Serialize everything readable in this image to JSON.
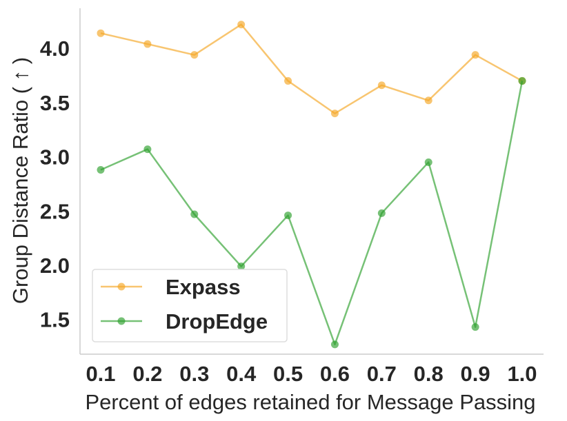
{
  "chart_data": {
    "type": "line",
    "title": "",
    "xlabel": "Percent of edges retained for Message Passing",
    "ylabel": "Group Distance Ratio ( ↑ )",
    "x": [
      0.1,
      0.2,
      0.3,
      0.4,
      0.5,
      0.6,
      0.7,
      0.8,
      0.9,
      1.0
    ],
    "x_tick_labels": [
      "0.1",
      "0.2",
      "0.3",
      "0.4",
      "0.5",
      "0.6",
      "0.7",
      "0.8",
      "0.9",
      "1.0"
    ],
    "y_ticks": [
      1.5,
      2.0,
      2.5,
      3.0,
      3.5,
      4.0
    ],
    "y_tick_labels": [
      "1.5",
      "2.0",
      "2.5",
      "3.0",
      "3.5",
      "4.0"
    ],
    "xlim": [
      0.05,
      1.05
    ],
    "ylim": [
      1.18,
      4.37
    ],
    "grid": false,
    "legend_position": "lower-left",
    "series": [
      {
        "name": "Expass",
        "color": "#f5a623",
        "values": [
          4.14,
          4.04,
          3.94,
          4.22,
          3.7,
          3.4,
          3.66,
          3.52,
          3.94,
          3.7
        ]
      },
      {
        "name": "DropEdge",
        "color": "#2ca02c",
        "values": [
          2.88,
          3.07,
          2.47,
          1.99,
          2.46,
          1.27,
          2.48,
          2.95,
          1.43,
          3.7
        ]
      }
    ]
  }
}
